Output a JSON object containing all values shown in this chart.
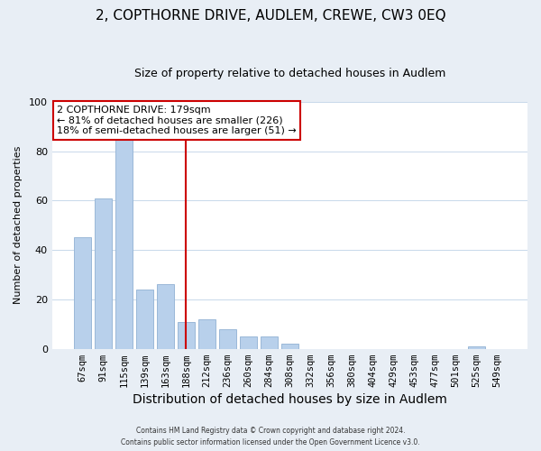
{
  "title": "2, COPTHORNE DRIVE, AUDLEM, CREWE, CW3 0EQ",
  "subtitle": "Size of property relative to detached houses in Audlem",
  "xlabel": "Distribution of detached houses by size in Audlem",
  "ylabel": "Number of detached properties",
  "footnote1": "Contains HM Land Registry data © Crown copyright and database right 2024.",
  "footnote2": "Contains public sector information licensed under the Open Government Licence v3.0.",
  "bar_labels": [
    "67sqm",
    "91sqm",
    "115sqm",
    "139sqm",
    "163sqm",
    "188sqm",
    "212sqm",
    "236sqm",
    "260sqm",
    "284sqm",
    "308sqm",
    "332sqm",
    "356sqm",
    "380sqm",
    "404sqm",
    "429sqm",
    "453sqm",
    "477sqm",
    "501sqm",
    "525sqm",
    "549sqm"
  ],
  "bar_values": [
    45,
    61,
    85,
    24,
    26,
    11,
    12,
    8,
    5,
    5,
    2,
    0,
    0,
    0,
    0,
    0,
    0,
    0,
    0,
    1,
    0
  ],
  "bar_color": "#b8d0eb",
  "bar_edge_color": "#9ab8d8",
  "vline_color": "#cc0000",
  "annotation_title": "2 COPTHORNE DRIVE: 179sqm",
  "annotation_line1": "← 81% of detached houses are smaller (226)",
  "annotation_line2": "18% of semi-detached houses are larger (51) →",
  "annotation_box_color": "white",
  "annotation_box_edge_color": "#cc0000",
  "ylim": [
    0,
    100
  ],
  "background_color": "#e8eef5",
  "plot_background_color": "white",
  "grid_color": "#c8d8ea",
  "title_fontsize": 11,
  "subtitle_fontsize": 9,
  "xlabel_fontsize": 10,
  "ylabel_fontsize": 8
}
